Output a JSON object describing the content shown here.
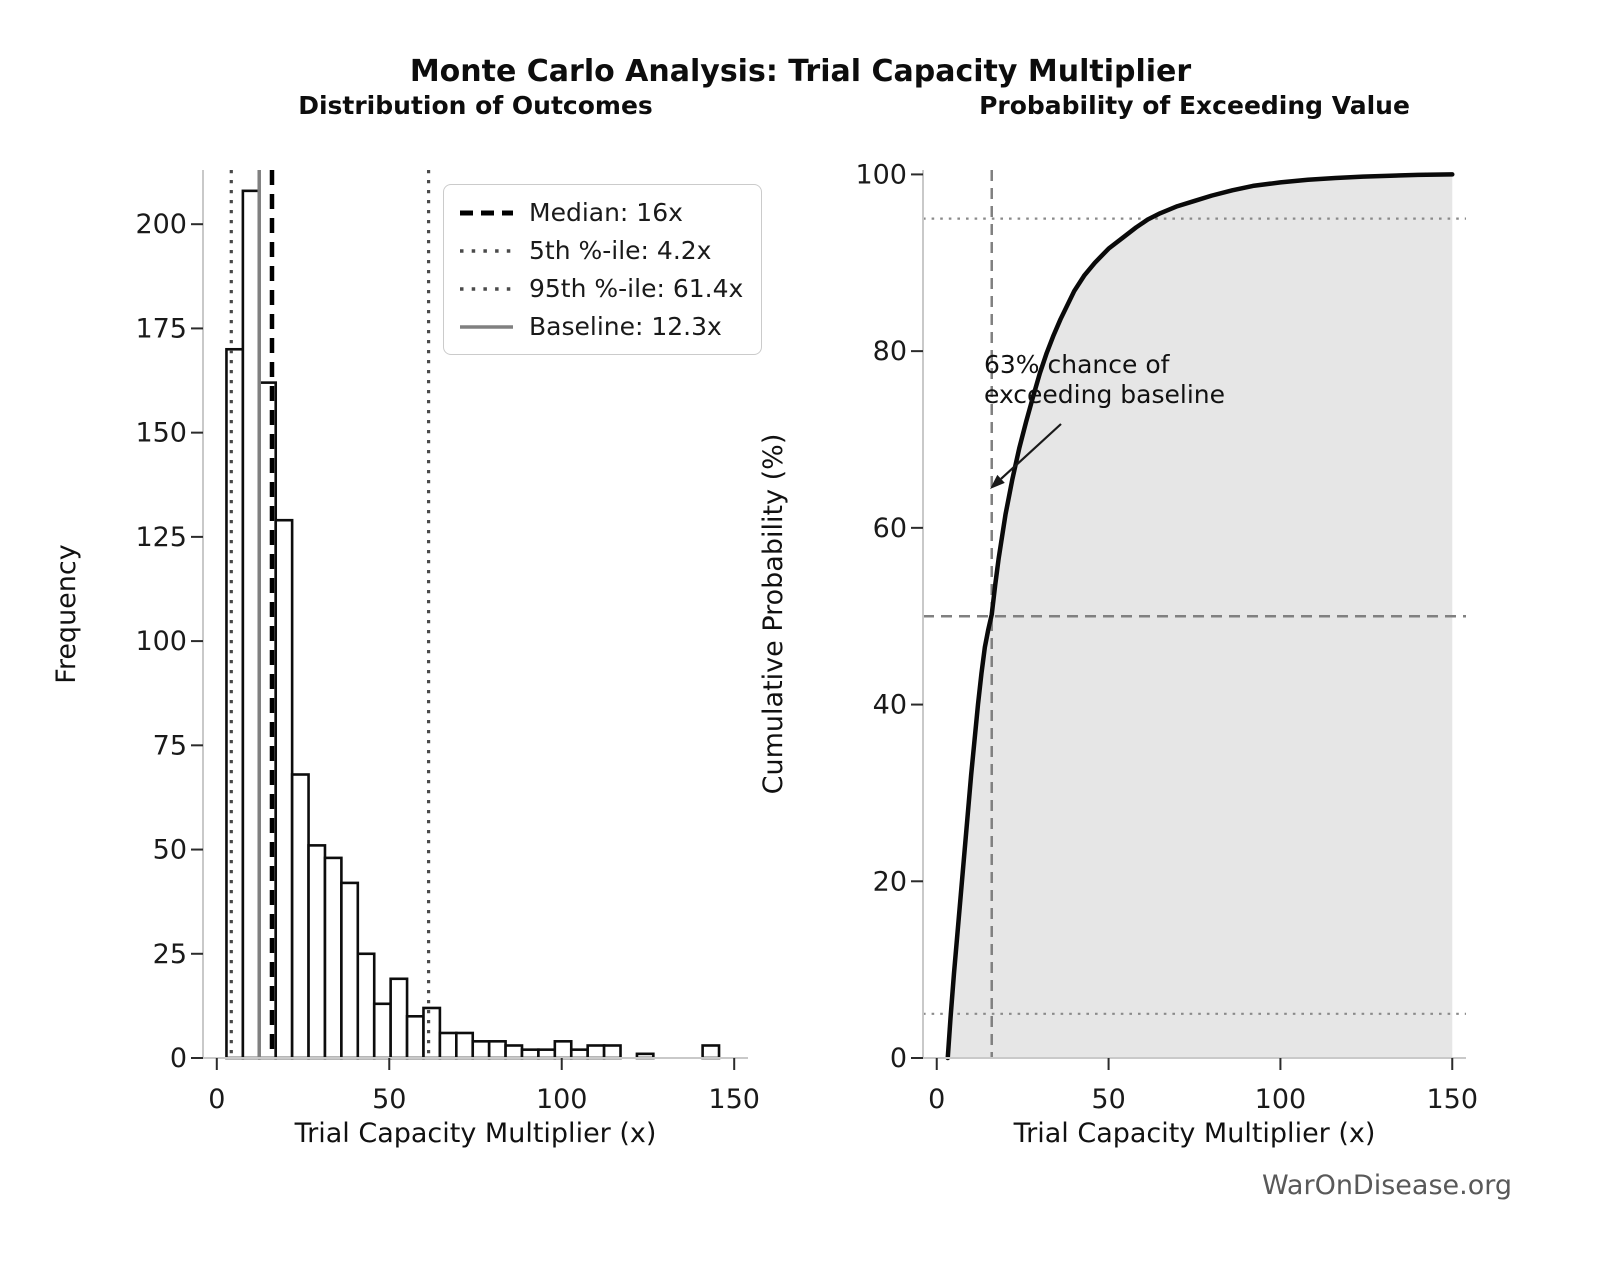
{
  "figure": {
    "title": "Monte Carlo Analysis: Trial Capacity Multiplier",
    "watermark": "WarOnDisease.org"
  },
  "chart_data": [
    {
      "type": "bar",
      "title": "Distribution of Outcomes",
      "xlabel": "Trial Capacity Multiplier (x)",
      "ylabel": "Frequency",
      "xticks": [
        0,
        50,
        100,
        150
      ],
      "yticks": [
        0,
        25,
        50,
        75,
        100,
        125,
        150,
        175,
        200
      ],
      "xlim": [
        -4,
        154
      ],
      "ylim": [
        0,
        213
      ],
      "grid": false,
      "histogram": {
        "bin_start": 2.8,
        "bin_width": 4.76,
        "counts": [
          170,
          208,
          162,
          129,
          68,
          51,
          48,
          42,
          25,
          13,
          19,
          10,
          12,
          6,
          6,
          4,
          4,
          3,
          2,
          2,
          4,
          2,
          3,
          3,
          0,
          1,
          0,
          0,
          0,
          3
        ],
        "bar_fill": "#ffffff",
        "bar_edge": "#0d0d0d"
      },
      "markers": [
        {
          "label": "Median: 16x",
          "value": 16,
          "style": "dashed",
          "color": "#000000",
          "width": 4.5
        },
        {
          "label": "5th %-ile: 4.2x",
          "value": 4.2,
          "style": "dotted",
          "color": "#4a4a4a",
          "width": 3.2
        },
        {
          "label": "95th %-ile: 61.4x",
          "value": 61.4,
          "style": "dotted",
          "color": "#4a4a4a",
          "width": 3.2
        },
        {
          "label": "Baseline: 12.3x",
          "value": 12.3,
          "style": "solid",
          "color": "#808080",
          "width": 3.5
        }
      ],
      "legend_position": "upper right"
    },
    {
      "type": "line",
      "title": "Probability of Exceeding Value",
      "xlabel": "Trial Capacity Multiplier (x)",
      "ylabel": "Cumulative Probability (%)",
      "xticks": [
        0,
        50,
        100,
        150
      ],
      "yticks": [
        0,
        20,
        40,
        60,
        80,
        100
      ],
      "xlim": [
        -4,
        154
      ],
      "ylim": [
        0,
        100.5
      ],
      "series": [
        {
          "name": "cumulative-probability",
          "color": "#0a0a0a",
          "width": 4.5,
          "fill": "#e6e6e6",
          "x": [
            3.2,
            4,
            5,
            6,
            7,
            8,
            9,
            10,
            11,
            12,
            13,
            14,
            15,
            16,
            17,
            18,
            19,
            20,
            21,
            22,
            24,
            26,
            28,
            30,
            32,
            34,
            36,
            38,
            40,
            43,
            46,
            50,
            54,
            58,
            61.4,
            65,
            70,
            75,
            80,
            86,
            92,
            100,
            108,
            116,
            124,
            132,
            140,
            150
          ],
          "y": [
            0,
            4.5,
            9.5,
            14,
            18.5,
            23,
            27.5,
            32,
            36,
            40,
            43.5,
            46.5,
            48.5,
            50.2,
            53.5,
            56.5,
            59,
            61.5,
            63.5,
            65.5,
            69,
            72,
            74.8,
            77.5,
            79.8,
            81.8,
            83.6,
            85.2,
            86.8,
            88.6,
            90,
            91.6,
            92.8,
            94,
            94.9,
            95.6,
            96.4,
            97,
            97.6,
            98.2,
            98.7,
            99.1,
            99.4,
            99.6,
            99.75,
            99.85,
            99.95,
            100
          ]
        }
      ],
      "reference_lines": {
        "horizontal": [
          {
            "y": 95,
            "style": "dotted",
            "color": "#8a8a8a",
            "width": 2.2
          },
          {
            "y": 50,
            "style": "dashed",
            "color": "#808080",
            "width": 2.5
          },
          {
            "y": 5,
            "style": "dotted",
            "color": "#8a8a8a",
            "width": 2.2
          }
        ],
        "vertical": [
          {
            "x": 16,
            "style": "dashed",
            "color": "#808080",
            "width": 2.5
          }
        ]
      },
      "annotation": {
        "line1": "63% chance of",
        "line2": "exceeding baseline"
      }
    }
  ]
}
